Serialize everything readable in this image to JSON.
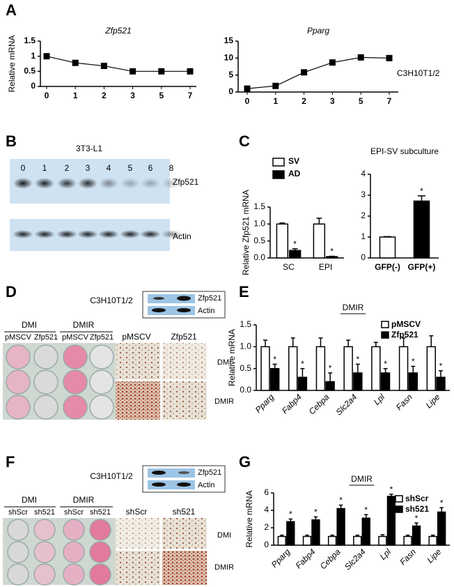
{
  "panel_labels": [
    "A",
    "B",
    "C",
    "D",
    "E",
    "F",
    "G"
  ],
  "chart_data": [
    {
      "type": "line",
      "title": "Zfp521",
      "y_label": "Relative mRNA",
      "categories": [
        "0",
        "1",
        "2",
        "3",
        "5",
        "7"
      ],
      "values": [
        1,
        0.78,
        0.68,
        0.5,
        0.5,
        0.5
      ],
      "color": "#000000",
      "ylim": [
        0,
        1.5
      ],
      "yticks": [
        0,
        0.5,
        1,
        1.5
      ]
    },
    {
      "type": "line",
      "title": "Pparg",
      "annotation": "C3H10T1/2",
      "categories": [
        "0",
        "1",
        "2",
        "3",
        "5",
        "7"
      ],
      "values": [
        1,
        1.8,
        5.8,
        8.7,
        10.2,
        10
      ],
      "color": "#000000",
      "ylim": [
        0,
        15
      ],
      "yticks": [
        0,
        5,
        10,
        15
      ]
    },
    {
      "type": "bar",
      "y_label": "Relative Zfp521 mRNA",
      "categories": [
        "SC",
        "EPI"
      ],
      "series": [
        {
          "name": "SV",
          "color": "#ffffff",
          "values": [
            1.0,
            1.0
          ],
          "errors": [
            0.03,
            0.17
          ],
          "marks": [
            null,
            null
          ]
        },
        {
          "name": "AD",
          "color": "#000000",
          "values": [
            0.22,
            0.04
          ],
          "errors": [
            0.05,
            0.01
          ],
          "marks": [
            "*",
            "*"
          ]
        }
      ],
      "ylim": [
        0,
        1.5
      ],
      "yticks": [
        {
          "value": 0,
          "label": "0.0"
        },
        0.5,
        {
          "value": 1,
          "label": "1.0"
        },
        1.5
      ]
    },
    {
      "type": "bar",
      "title": "EPI-SV subculture",
      "categories": [
        "GFP(-)",
        "GFP(+)"
      ],
      "values": [
        1.0,
        2.72
      ],
      "errors": [
        0.02,
        0.25
      ],
      "colors": [
        "#ffffff",
        "#000000"
      ],
      "marks": [
        null,
        "*"
      ],
      "ylim": [
        0,
        4
      ],
      "yticks": [
        0,
        1,
        2,
        3,
        4
      ]
    },
    {
      "type": "bar",
      "title": "DMIR",
      "y_label": "Relative mRNA",
      "categories": [
        "Pparg",
        "Fabp4",
        "Cebpa",
        "Slc2a4",
        "Lpl",
        "Fasn",
        "Lipe"
      ],
      "series": [
        {
          "name": "pMSCV",
          "color": "#ffffff",
          "values": [
            1,
            1,
            1,
            1,
            1,
            1,
            1
          ],
          "errors": [
            0.15,
            0.2,
            0.2,
            0.15,
            0.1,
            0.2,
            0.25
          ],
          "marks": [
            null,
            null,
            null,
            null,
            null,
            null,
            null
          ]
        },
        {
          "name": "Zfp521",
          "color": "#000000",
          "values": [
            0.5,
            0.3,
            0.2,
            0.4,
            0.4,
            0.4,
            0.3
          ],
          "errors": [
            0.1,
            0.2,
            0.2,
            0.2,
            0.1,
            0.15,
            0.15
          ],
          "marks": [
            "*",
            "*",
            "*",
            "*",
            "*",
            "*",
            "*"
          ]
        }
      ],
      "ylim": [
        0,
        1.5
      ],
      "yticks": [
        {
          "value": 0,
          "label": "0.0"
        },
        0.5,
        {
          "value": 1,
          "label": "1.0"
        },
        1.5
      ]
    },
    {
      "type": "bar",
      "title": "DMIR",
      "y_label": "Relative mRNA",
      "categories": [
        "Pparg",
        "Fabp4",
        "Cebpa",
        "Slc2a4",
        "Lpl",
        "Fasn",
        "Lipe"
      ],
      "series": [
        {
          "name": "shScr",
          "color": "#ffffff",
          "values": [
            1,
            1,
            1,
            1,
            1,
            1,
            1
          ],
          "errors": [
            0.15,
            0.15,
            0.15,
            0.15,
            0.2,
            0.15,
            0.15
          ],
          "marks": [
            null,
            null,
            null,
            null,
            null,
            null,
            null
          ]
        },
        {
          "name": "sh521",
          "color": "#000000",
          "values": [
            2.7,
            2.9,
            4.2,
            3.1,
            5.6,
            2.2,
            3.8
          ],
          "errors": [
            0.3,
            0.35,
            0.4,
            0.4,
            0.25,
            0.35,
            0.5
          ],
          "marks": [
            "*",
            "*",
            "*",
            "*",
            "*",
            "*",
            "*"
          ]
        }
      ],
      "ylim": [
        0,
        6
      ],
      "yticks": [
        0,
        2,
        4,
        6
      ]
    }
  ],
  "blot_b": {
    "title": "3T3-L1",
    "lanes": [
      "0",
      "1",
      "2",
      "3",
      "4",
      "5",
      "6",
      "8"
    ],
    "bands": [
      "Zfp521",
      "Actin"
    ]
  },
  "panel_d": {
    "cell_line": "C3H10T1/2",
    "blot": [
      "Zfp521",
      "Actin"
    ],
    "groups": [
      "DMI",
      "DMIR"
    ],
    "wells": [
      "pMSCV",
      "Zfp521",
      "pMSCV",
      "Zfp521"
    ],
    "micro_cols": [
      "pMSCV",
      "Zfp521"
    ],
    "micro_rows": [
      "DMI",
      "DMIR"
    ]
  },
  "panel_f": {
    "cell_line": "C3H10T1/2",
    "blot": [
      "Zfp521",
      "Actin"
    ],
    "groups": [
      "DMI",
      "DMIR"
    ],
    "wells": [
      "shScr",
      "sh521",
      "shScr",
      "sh521"
    ],
    "micro_cols": [
      "shScr",
      "sh521"
    ],
    "micro_rows": [
      "DMI",
      "DMIR"
    ]
  }
}
